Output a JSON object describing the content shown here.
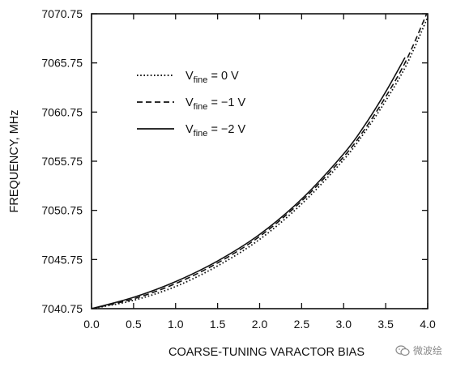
{
  "chart_data": {
    "type": "line",
    "xlabel": "COARSE-TUNING VARACTOR BIAS",
    "ylabel": "FREQUENCY, MHz",
    "xlim": [
      0.0,
      4.0
    ],
    "ylim": [
      7040.75,
      7070.75
    ],
    "xticks": [
      "0.0",
      "0.5",
      "1.0",
      "1.5",
      "2.0",
      "2.5",
      "3.0",
      "3.5",
      "4.0"
    ],
    "yticks": [
      "7040.75",
      "7045.75",
      "7050.75",
      "7055.75",
      "7060.75",
      "7065.75",
      "7070.75"
    ],
    "grid": false,
    "legend_position": "top-left",
    "series": [
      {
        "name": "Vfine = 0 V",
        "legend_main": "V",
        "legend_sub": "fine",
        "legend_value": " = 0 V",
        "style": "dotted",
        "x": [
          0.0,
          0.5,
          1.0,
          1.5,
          2.0,
          2.5,
          3.0,
          3.25,
          3.5,
          3.75,
          4.0
        ],
        "y": [
          7040.75,
          7041.6,
          7043.0,
          7045.1,
          7047.8,
          7051.4,
          7055.9,
          7058.7,
          7061.9,
          7065.6,
          7070.4
        ]
      },
      {
        "name": "Vfine = −1 V",
        "legend_main": "V",
        "legend_sub": "fine",
        "legend_value": " = −1 V",
        "style": "dashed",
        "x": [
          0.0,
          0.5,
          1.0,
          1.5,
          2.0,
          2.5,
          3.0,
          3.25,
          3.5,
          3.75,
          4.0
        ],
        "y": [
          7040.75,
          7041.75,
          7043.3,
          7045.4,
          7048.1,
          7051.7,
          7056.2,
          7059.0,
          7062.3,
          7066.1,
          7071.0
        ]
      },
      {
        "name": "Vfine = −2 V",
        "legend_main": "V",
        "legend_sub": "fine",
        "legend_value": " = −2 V",
        "style": "solid",
        "x": [
          0.0,
          0.5,
          1.0,
          1.5,
          2.0,
          2.5,
          3.0,
          3.25,
          3.5,
          3.73
        ],
        "y": [
          7040.75,
          7041.9,
          7043.5,
          7045.6,
          7048.3,
          7051.9,
          7056.5,
          7059.4,
          7062.8,
          7066.3
        ]
      }
    ]
  },
  "watermark": {
    "text": "微波绘",
    "icon": "wechat-icon"
  }
}
